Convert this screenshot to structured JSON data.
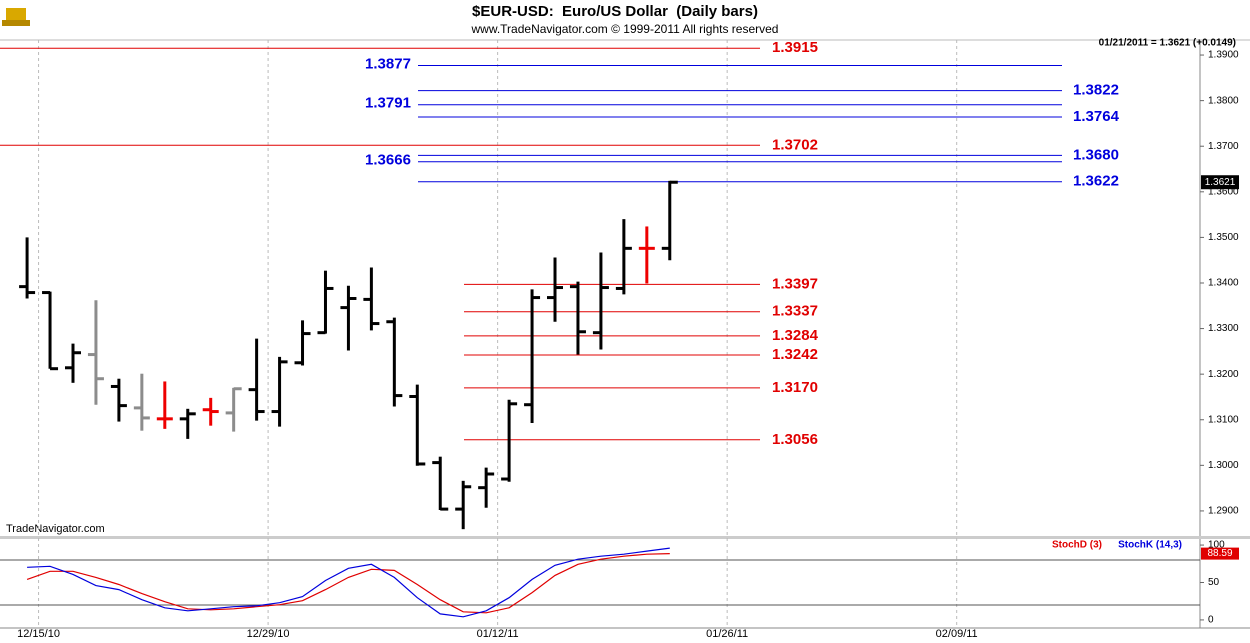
{
  "chart_data": [
    {
      "type": "ohlc",
      "title": "$EUR-USD:  Euro/US Dollar  (Daily bars)",
      "subtitle": "www.TradeNavigator.com © 1999-2011 All rights reserved",
      "info": "01/21/2011 = 1.3621 (+0.0149)",
      "watermark": "TradeNavigator.com",
      "x": [
        0,
        1,
        2,
        3,
        4,
        5,
        6,
        7,
        8,
        9,
        10,
        11,
        12,
        13,
        14,
        15,
        16,
        17,
        18,
        19,
        20,
        21,
        22,
        23,
        24,
        25,
        26,
        27,
        28
      ],
      "open": [
        1.3392,
        1.3379,
        1.3214,
        1.3243,
        1.3173,
        1.3126,
        1.3102,
        1.3102,
        1.3122,
        1.3115,
        1.3166,
        1.3118,
        1.3225,
        1.3291,
        1.3346,
        1.3364,
        1.3315,
        1.3151,
        1.3006,
        1.2904,
        1.2951,
        1.297,
        1.3133,
        1.3368,
        1.3392,
        1.3291,
        1.3388,
        1.3476,
        1.3476
      ],
      "high": [
        1.35,
        1.3381,
        1.3267,
        1.3362,
        1.319,
        1.3201,
        1.3184,
        1.3124,
        1.3148,
        1.317,
        1.3278,
        1.3238,
        1.3318,
        1.3427,
        1.3394,
        1.3434,
        1.3324,
        1.3177,
        1.3019,
        1.2966,
        1.2995,
        1.3144,
        1.3386,
        1.3456,
        1.3403,
        1.3467,
        1.354,
        1.3524,
        1.3624
      ],
      "low": [
        1.3366,
        1.3212,
        1.3181,
        1.3133,
        1.3096,
        1.3076,
        1.308,
        1.3058,
        1.3087,
        1.3074,
        1.3098,
        1.3085,
        1.3219,
        1.3289,
        1.3252,
        1.3296,
        1.3129,
        1.2999,
        1.2902,
        1.286,
        1.2907,
        1.2964,
        1.3093,
        1.3315,
        1.3243,
        1.3254,
        1.3375,
        1.3399,
        1.345
      ],
      "close": [
        1.3379,
        1.3212,
        1.3247,
        1.319,
        1.3131,
        1.3104,
        1.3102,
        1.3113,
        1.3118,
        1.3168,
        1.3118,
        1.3227,
        1.3289,
        1.3388,
        1.3366,
        1.3311,
        1.3153,
        1.3003,
        1.2904,
        1.2953,
        1.2981,
        1.3135,
        1.3368,
        1.339,
        1.3293,
        1.339,
        1.3476,
        1.3476,
        1.3621
      ],
      "bar_colors": [
        "#000000",
        "#000000",
        "#000000",
        "#8c8c8c",
        "#000000",
        "#8c8c8c",
        "#ee0000",
        "#000000",
        "#ee0000",
        "#8c8c8c",
        "#000000",
        "#000000",
        "#000000",
        "#000000",
        "#000000",
        "#000000",
        "#000000",
        "#000000",
        "#000000",
        "#000000",
        "#000000",
        "#000000",
        "#000000",
        "#000000",
        "#000000",
        "#000000",
        "#000000",
        "#ee0000",
        "#000000"
      ],
      "levels": [
        {
          "value": 1.3915,
          "label": "1.3915",
          "color": "#e00000"
        },
        {
          "value": 1.3877,
          "label": "1.3877",
          "color": "#0000dd"
        },
        {
          "value": 1.3822,
          "label": "1.3822",
          "color": "#0000dd"
        },
        {
          "value": 1.3791,
          "label": "1.3791",
          "color": "#0000dd"
        },
        {
          "value": 1.3764,
          "label": "1.3764",
          "color": "#0000dd"
        },
        {
          "value": 1.3702,
          "label": "1.3702",
          "color": "#e00000"
        },
        {
          "value": 1.368,
          "label": "1.3680",
          "color": "#0000dd"
        },
        {
          "value": 1.3666,
          "label": "1.3666",
          "color": "#0000dd"
        },
        {
          "value": 1.3622,
          "label": "1.3622",
          "color": "#0000dd"
        },
        {
          "value": 1.3397,
          "label": "1.3397",
          "color": "#e00000"
        },
        {
          "value": 1.3337,
          "label": "1.3337",
          "color": "#e00000"
        },
        {
          "value": 1.3284,
          "label": "1.3284",
          "color": "#e00000"
        },
        {
          "value": 1.3242,
          "label": "1.3242",
          "color": "#e00000"
        },
        {
          "value": 1.317,
          "label": "1.3170",
          "color": "#e00000"
        },
        {
          "value": 1.3056,
          "label": "1.3056",
          "color": "#e00000"
        }
      ],
      "xlim": [
        -1.18,
        51.1
      ],
      "xticks": [
        {
          "value": 0.5,
          "label": "12/15/10"
        },
        {
          "value": 10.5,
          "label": "12/29/10"
        },
        {
          "value": 20.5,
          "label": "01/12/11"
        },
        {
          "value": 30.5,
          "label": "01/26/11"
        },
        {
          "value": 40.5,
          "label": "02/09/11"
        }
      ],
      "ylim": [
        1.2845,
        1.3933
      ],
      "yticks": [
        {
          "value": 1.29,
          "label": "1.2900"
        },
        {
          "value": 1.3,
          "label": "1.3000"
        },
        {
          "value": 1.31,
          "label": "1.3100"
        },
        {
          "value": 1.32,
          "label": "1.3200"
        },
        {
          "value": 1.33,
          "label": "1.3300"
        },
        {
          "value": 1.34,
          "label": "1.3400"
        },
        {
          "value": 1.35,
          "label": "1.3500"
        },
        {
          "value": 1.36,
          "label": "1.3600"
        },
        {
          "value": 1.37,
          "label": "1.3700"
        },
        {
          "value": 1.38,
          "label": "1.3800"
        },
        {
          "value": 1.39,
          "label": "1.3900"
        }
      ],
      "grid": true
    },
    {
      "type": "line",
      "x": [
        0,
        1,
        2,
        3,
        4,
        5,
        6,
        7,
        8,
        9,
        10,
        11,
        12,
        13,
        14,
        15,
        16,
        17,
        18,
        19,
        20,
        21,
        22,
        23,
        24,
        25,
        26,
        27,
        28
      ],
      "series": [
        {
          "name": "StochD (3)",
          "color": "#e00000",
          "values": [
            54.1,
            64.9,
            64.9,
            56.8,
            47.3,
            35.1,
            24.3,
            14.9,
            13.5,
            14.9,
            17.6,
            20.3,
            25.7,
            40.5,
            56.8,
            67.6,
            66.2,
            47.3,
            27.0,
            10.8,
            9.5,
            16.2,
            36.5,
            59.5,
            74.3,
            81.1,
            85.1,
            87.8,
            88.59
          ]
        },
        {
          "name": "StochK (14,3)",
          "color": "#0000dd",
          "values": [
            70.3,
            71.6,
            60.8,
            45.9,
            40.5,
            27.0,
            16.2,
            12.2,
            14.9,
            17.6,
            18.9,
            23.0,
            31.1,
            52.7,
            68.9,
            74.3,
            56.8,
            29.7,
            8.1,
            4.1,
            12.2,
            29.7,
            54.1,
            73.0,
            81.1,
            85.1,
            87.8,
            91.9,
            95.9
          ]
        }
      ],
      "reference_lines": [
        20,
        80
      ],
      "xlim": [
        -1.18,
        51.1
      ],
      "ylim": [
        -10.8,
        108.1
      ],
      "yticks": [
        0,
        50,
        100
      ]
    }
  ]
}
